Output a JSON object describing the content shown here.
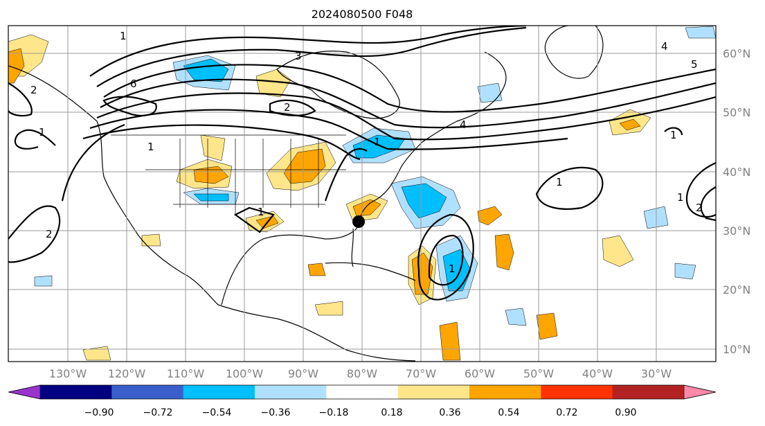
{
  "title": "2024080500 F048",
  "lat_labels": [
    "60°N",
    "50°N",
    "40°N",
    "30°N",
    "20°N",
    "10°N"
  ],
  "lon_labels": [
    "130°W",
    "120°W",
    "110°W",
    "100°W",
    "90°W",
    "80°W",
    "70°W",
    "60°W",
    "50°W",
    "40°W",
    "30°W"
  ],
  "colorbar": {
    "ticks": [
      "−0.90",
      "−0.72",
      "−0.54",
      "−0.36",
      "−0.18",
      "0.18",
      "0.36",
      "0.54",
      "0.72",
      "0.90"
    ],
    "colors": [
      "#9933cc",
      "#000080",
      "#3a5fcd",
      "#00bfff",
      "#b0e0ff",
      "#ffffff",
      "#ffe68a",
      "#ffa500",
      "#ff3300",
      "#b22222",
      "#ff88aa"
    ]
  },
  "contour_labels": [
    "1",
    "1",
    "2",
    "2",
    "3",
    "4",
    "4",
    "5",
    "6",
    "1",
    "1",
    "2",
    "1",
    "1",
    "1",
    "1",
    "2",
    "1"
  ],
  "marker": "station-dot"
}
